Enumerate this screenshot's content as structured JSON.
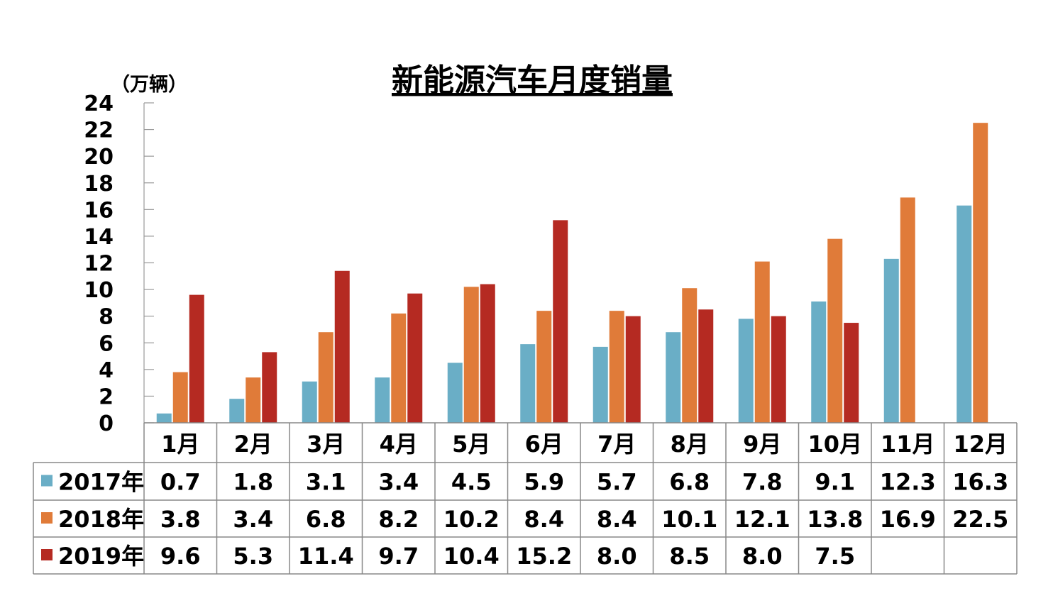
{
  "chart_data": {
    "type": "bar",
    "title": "新能源汽车月度销量",
    "unit_label": "（万辆）",
    "ylim": [
      0,
      24
    ],
    "y_ticks": [
      0,
      2,
      4,
      6,
      8,
      10,
      12,
      14,
      16,
      18,
      20,
      22,
      24
    ],
    "categories": [
      "1月",
      "2月",
      "3月",
      "4月",
      "5月",
      "6月",
      "7月",
      "8月",
      "9月",
      "10月",
      "11月",
      "12月"
    ],
    "series": [
      {
        "name": "2017年",
        "color": "#6aaec6",
        "values": [
          0.7,
          1.8,
          3.1,
          3.4,
          4.5,
          5.9,
          5.7,
          6.8,
          7.8,
          9.1,
          12.3,
          16.3
        ],
        "labels": [
          "0.7",
          "1.8",
          "3.1",
          "3.4",
          "4.5",
          "5.9",
          "5.7",
          "6.8",
          "7.8",
          "9.1",
          "12.3",
          "16.3"
        ]
      },
      {
        "name": "2018年",
        "color": "#e07b39",
        "values": [
          3.8,
          3.4,
          6.8,
          8.2,
          10.2,
          8.4,
          8.4,
          10.1,
          12.1,
          13.8,
          16.9,
          22.5
        ],
        "labels": [
          "3.8",
          "3.4",
          "6.8",
          "8.2",
          "10.2",
          "8.4",
          "8.4",
          "10.1",
          "12.1",
          "13.8",
          "16.9",
          "22.5"
        ]
      },
      {
        "name": "2019年",
        "color": "#b52a22",
        "values": [
          9.6,
          5.3,
          11.4,
          9.7,
          10.4,
          15.2,
          8.0,
          8.5,
          8.0,
          7.5,
          null,
          null
        ],
        "labels": [
          "9.6",
          "5.3",
          "11.4",
          "9.7",
          "10.4",
          "15.2",
          "8.0",
          "8.5",
          "8.0",
          "7.5",
          "",
          ""
        ]
      }
    ],
    "grid": false,
    "legend": "data-table"
  }
}
